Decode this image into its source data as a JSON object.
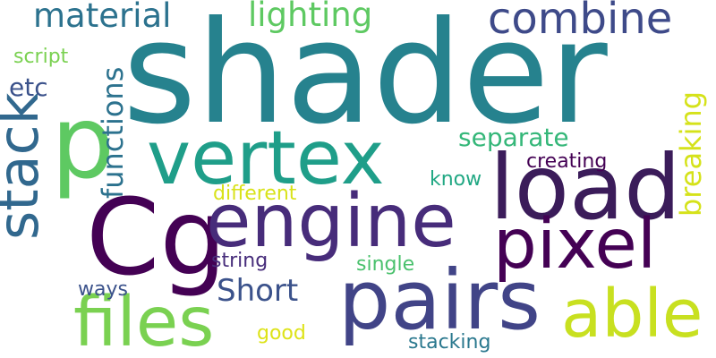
{
  "words": [
    {
      "text": "shader",
      "color": "#26828e"
    },
    {
      "text": "Cg",
      "color": "#440154"
    },
    {
      "text": "p",
      "color": "#5ec962"
    },
    {
      "text": "vertex",
      "color": "#1f9e89"
    },
    {
      "text": "load",
      "color": "#3b1c5a"
    },
    {
      "text": "engine",
      "color": "#472c7a"
    },
    {
      "text": "pairs",
      "color": "#414487"
    },
    {
      "text": "pixel",
      "color": "#440154"
    },
    {
      "text": "files",
      "color": "#7ad151"
    },
    {
      "text": "able",
      "color": "#c8e020"
    },
    {
      "text": "stack",
      "color": "#31688e"
    },
    {
      "text": "combine",
      "color": "#3e4a89"
    },
    {
      "text": "material",
      "color": "#2c728e"
    },
    {
      "text": "lighting",
      "color": "#5ec962"
    },
    {
      "text": "functions",
      "color": "#2c728e"
    },
    {
      "text": "breaking",
      "color": "#d5e21a"
    },
    {
      "text": "separate",
      "color": "#35b779"
    },
    {
      "text": "Short",
      "color": "#3b528b"
    },
    {
      "text": "etc",
      "color": "#3b528b"
    },
    {
      "text": "script",
      "color": "#7ad151"
    },
    {
      "text": "creating",
      "color": "#440154"
    },
    {
      "text": "know",
      "color": "#22a884"
    },
    {
      "text": "different",
      "color": "#d8e219"
    },
    {
      "text": "string",
      "color": "#472d7b"
    },
    {
      "text": "single",
      "color": "#4ac16d"
    },
    {
      "text": "ways",
      "color": "#3b528b"
    },
    {
      "text": "good",
      "color": "#dde318"
    },
    {
      "text": "stacking",
      "color": "#2a788e"
    }
  ]
}
